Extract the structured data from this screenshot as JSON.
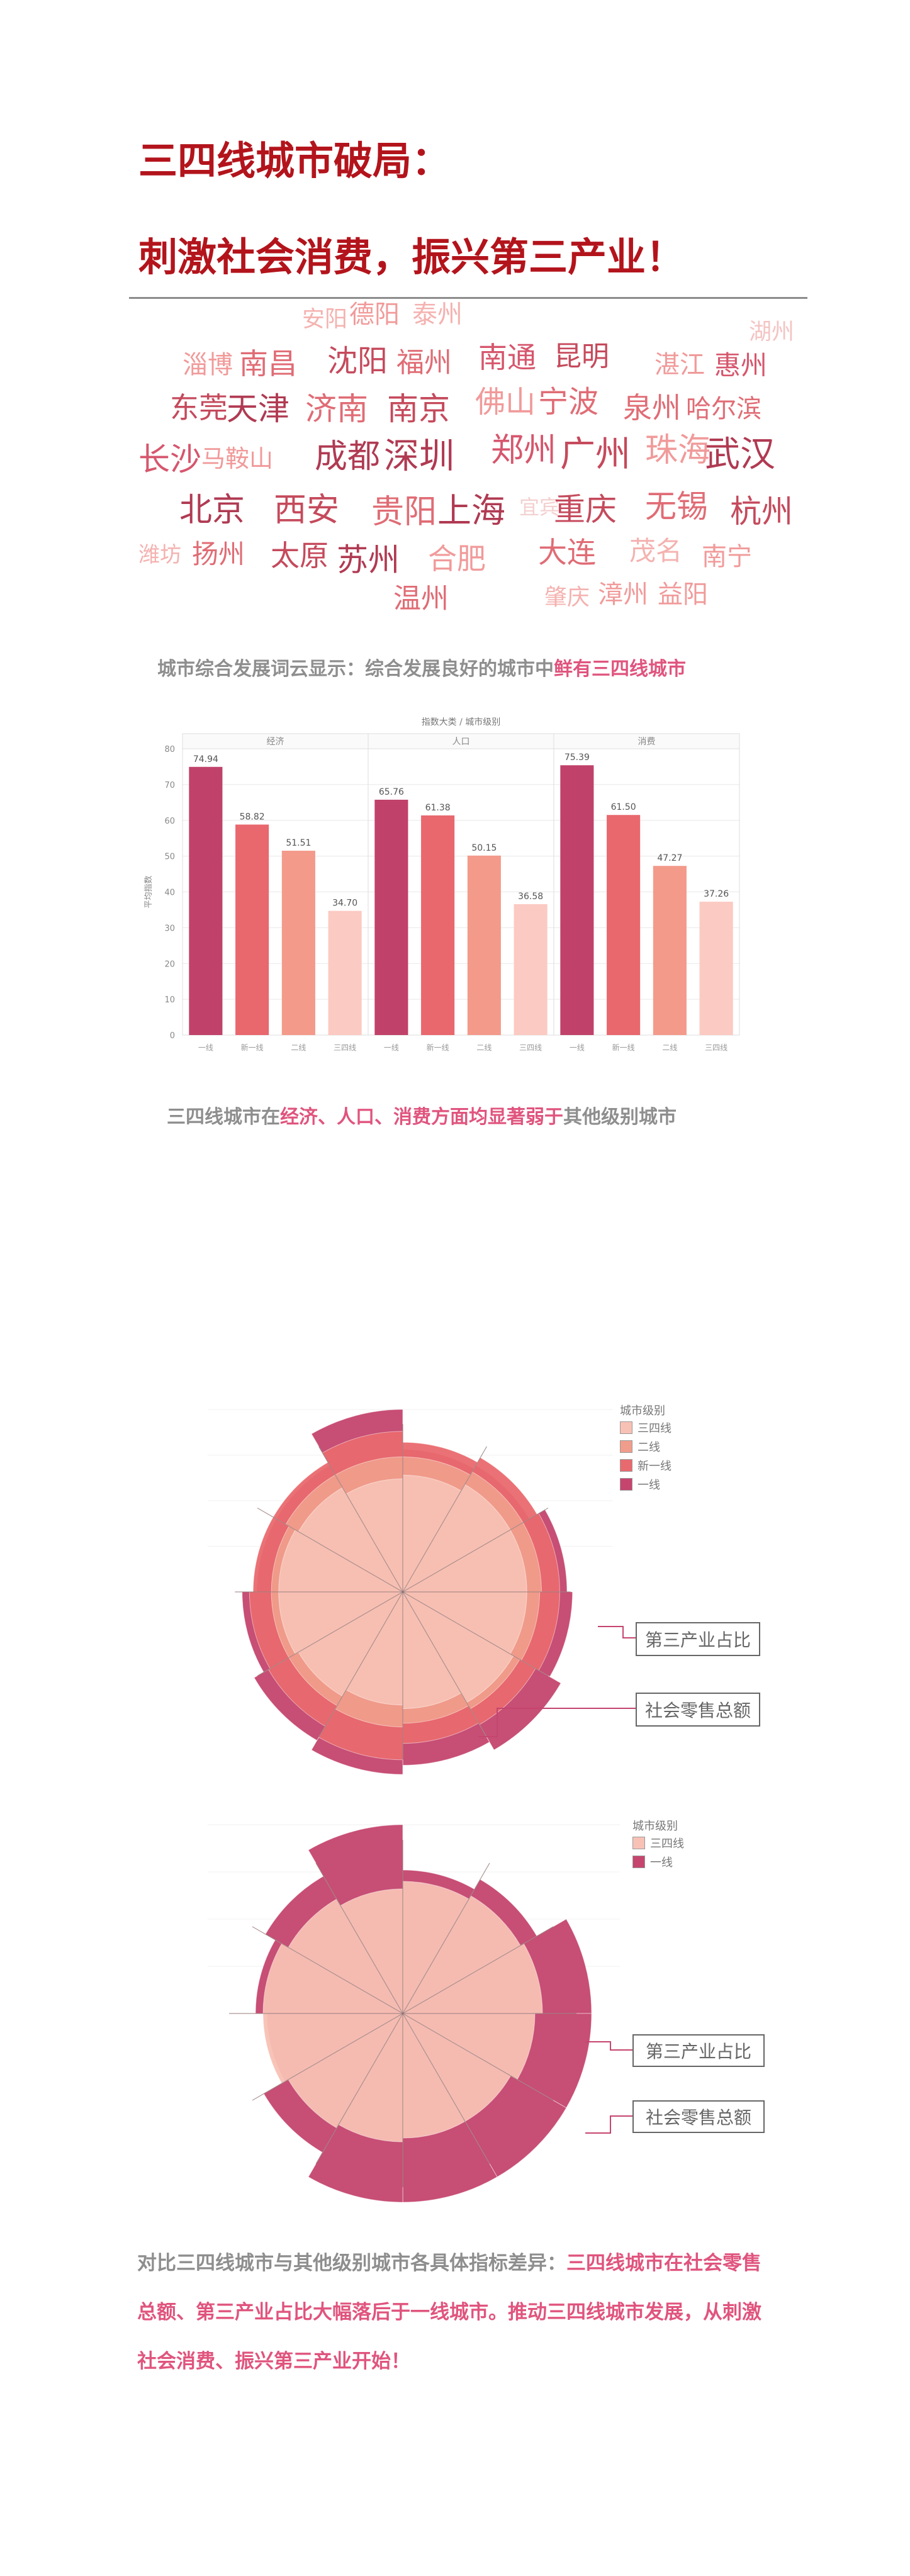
{
  "titles": {
    "line1": "三四线城市破局：",
    "line2": "刺激社会消费，振兴第三产业！"
  },
  "word_cloud": {
    "words": [
      "安阳",
      "德阳",
      "泰州",
      "湖州",
      "淄博",
      "南昌",
      "沈阳",
      "福州",
      "南通",
      "昆明",
      "湛江",
      "惠州",
      "东莞",
      "天津",
      "济南",
      "南京",
      "佛山",
      "宁波",
      "泉州",
      "哈尔滨",
      "长沙",
      "马鞍山",
      "成都",
      "深圳",
      "郑州",
      "广州",
      "珠海",
      "武汉",
      "北京",
      "西安",
      "贵阳",
      "上海",
      "宜宾",
      "重庆",
      "无锡",
      "杭州",
      "潍坊",
      "扬州",
      "太原",
      "苏州",
      "合肥",
      "大连",
      "茂名",
      "南宁",
      "温州",
      "肇庆",
      "漳州",
      "益阳"
    ]
  },
  "captions": {
    "cap1_main": "城市综合发展词云显示：综合发展良好的城市中",
    "cap1_hl": "鲜有三四线城市",
    "cap2_a": "三四线城市在",
    "cap2_hl": "经济、人口、消费方面均显著弱于",
    "cap2_b": "其他级别城市",
    "cap3_main": "对比三四线城市与其他级别城市各具体指标差异：",
    "cap3_hl": "三四线城市在社会零售总额、第三产业占比大幅落后于一线城市。推动三四线城市发展，从刺激社会消费、振兴第三产业开始！"
  },
  "chart_data": [
    {
      "type": "bar",
      "title": "指数大类 / 城市级别",
      "ylabel": "平均指数",
      "ylim": [
        0,
        80
      ],
      "yticks": [
        0,
        10,
        20,
        30,
        40,
        50,
        60,
        70,
        80
      ],
      "categories": [
        "一线",
        "新一线",
        "二线",
        "三四线"
      ],
      "panels": [
        {
          "name": "经济",
          "values": [
            74.94,
            58.82,
            51.51,
            34.7
          ],
          "labels": [
            "74.94",
            "58.82",
            "51.51",
            "34.70"
          ]
        },
        {
          "name": "人口",
          "values": [
            65.76,
            61.38,
            50.15,
            36.58
          ],
          "labels": [
            "65.76",
            "61.38",
            "50.15",
            "36.58"
          ]
        },
        {
          "name": "消费",
          "values": [
            75.39,
            61.5,
            47.27,
            37.26
          ],
          "labels": [
            "75.39",
            "61.50",
            "47.27",
            "37.26"
          ]
        }
      ],
      "colors": [
        "#c0426a",
        "#e8686e",
        "#f39a8b",
        "#fbcac2"
      ],
      "grid": true
    },
    {
      "type": "polar-area",
      "legend_title": "城市级别",
      "legend": [
        "三四线",
        "二线",
        "新一线",
        "一线"
      ],
      "colors": [
        "#f8c1b5",
        "#f19d8b",
        "#e96a6e",
        "#c5456e"
      ],
      "annotations": [
        "第三产业占比",
        "社会零售总额"
      ],
      "sectors": 12,
      "values": {
        "一线": [
          0.78,
          0.8,
          0.9,
          0.93,
          1.0,
          0.95,
          1.0,
          0.94,
          0.88,
          0.8,
          0.8,
          1.0
        ],
        "新一线": [
          0.82,
          0.85,
          0.86,
          0.86,
          0.84,
          0.83,
          0.92,
          0.85,
          0.84,
          0.82,
          0.82,
          0.88
        ],
        "二线": [
          0.74,
          0.76,
          0.76,
          0.75,
          0.74,
          0.72,
          0.74,
          0.72,
          0.72,
          0.72,
          0.74,
          0.74
        ],
        "三四线": [
          0.64,
          0.68,
          0.68,
          0.68,
          0.7,
          0.64,
          0.62,
          0.66,
          0.68,
          0.68,
          0.66,
          0.62
        ]
      }
    },
    {
      "type": "polar-area",
      "legend_title": "城市级别",
      "legend": [
        "三四线",
        "一线"
      ],
      "colors": [
        "#f8c1b5",
        "#c5456e"
      ],
      "annotations": [
        "第三产业占比",
        "社会零售总额"
      ],
      "sectors": 12,
      "values": {
        "一线": [
          0.76,
          0.82,
          1.0,
          1.0,
          1.0,
          1.0,
          1.0,
          0.85,
          0.72,
          0.78,
          0.84,
          1.0
        ],
        "三四线": [
          0.7,
          0.72,
          0.74,
          0.7,
          0.66,
          0.66,
          0.68,
          0.7,
          0.74,
          0.74,
          0.7,
          0.66
        ]
      }
    }
  ]
}
